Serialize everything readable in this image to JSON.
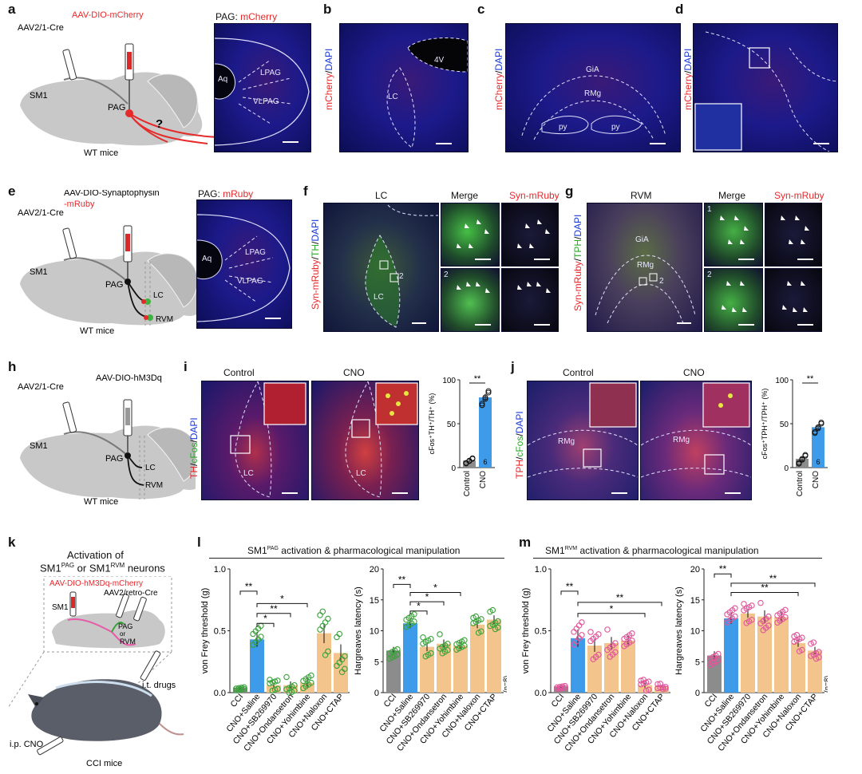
{
  "panels": {
    "a": {
      "letter": "a",
      "virus": "AAV-DIO-mCherry",
      "cre": "AAV2/1-Cre",
      "sm1": "SM1",
      "pag": "PAG",
      "question": "?",
      "mice": "WT mice",
      "img_title_prefix": "PAG: ",
      "img_title_marker": "mCherry",
      "aq": "Aq",
      "lpag": "LPAG",
      "vlpag": "VLPAG"
    },
    "b": {
      "letter": "b",
      "vlabel_red": "mCherry",
      "vlabel_sep": "/",
      "vlabel_blue": "DAPI",
      "v4": "4V",
      "lc": "LC"
    },
    "c": {
      "letter": "c",
      "vlabel_red": "mCherry",
      "vlabel_sep": "/",
      "vlabel_blue": "DAPI",
      "gia": "GiA",
      "rmg": "RMg",
      "py1": "py",
      "py2": "py"
    },
    "d": {
      "letter": "d",
      "vlabel_red": "mCherry",
      "vlabel_sep": "/",
      "vlabel_blue": "DAPI"
    },
    "e": {
      "letter": "e",
      "virus_line1": "AAV-DIO-Synaptophysin",
      "virus_line2": "-mRuby",
      "cre": "AAV2/1-Cre",
      "sm1": "SM1",
      "pag": "PAG",
      "lc": "LC",
      "rvm": "RVM",
      "mice": "WT mice",
      "img_title_prefix": "PAG: ",
      "img_title_marker": "mRuby",
      "aq": "Aq",
      "lpag": "LPAG",
      "vlpag": "VLPAG"
    },
    "f": {
      "letter": "f",
      "title": "LC",
      "merge": "Merge",
      "syn": "Syn-mRuby",
      "vl_red": "Syn-mRuby",
      "vl_green": "TH",
      "vl_blue": "DAPI",
      "lc": "LC",
      "n1": "1",
      "n2": "2",
      "z2": "2"
    },
    "g": {
      "letter": "g",
      "title": "RVM",
      "merge": "Merge",
      "syn": "Syn-mRuby",
      "vl_red": "Syn-mRuby",
      "vl_green": "TPH",
      "vl_blue": "DAPI",
      "gia": "GiA",
      "rmg": "RMg",
      "n1": "1",
      "n2": "2",
      "z2": "2"
    },
    "h": {
      "letter": "h",
      "virus": "AAV-DIO-hM3Dq",
      "cre": "AAV2/1-Cre",
      "sm1": "SM1",
      "pag": "PAG",
      "lc": "LC",
      "rvm": "RVM",
      "mice": "WT mice"
    },
    "i": {
      "letter": "i",
      "control": "Control",
      "cno": "CNO",
      "vl_red": "TH",
      "vl_green": "cFos",
      "vl_blue": "DAPI",
      "lc1": "LC",
      "lc2": "LC"
    },
    "j": {
      "letter": "j",
      "control": "Control",
      "cno": "CNO",
      "vl_red": "TPH",
      "vl_green": "cFos",
      "vl_blue": "DAPI",
      "rmg1": "RMg",
      "rmg2": "RMg"
    },
    "k": {
      "letter": "k",
      "title1": "Activation of",
      "title2_pre": "SM1",
      "title2_sup1": "PAG",
      "title2_mid": " or SM1",
      "title2_sup2": "RVM",
      "title2_post": " neurons",
      "virus": "AAV-DIO-hM3Dq-mCherry",
      "retro": "AAV2/retro-Cre",
      "sm1": "SM1",
      "pag": "PAG",
      "or": "or",
      "rvm": "RVM",
      "it": "i.t. drugs",
      "ip": "i.p. CNO",
      "mice": "CCI mice"
    },
    "l": {
      "letter": "l",
      "title_pre": "SM1",
      "title_sup": "PAG",
      "title_post": " activation & pharmacological manipulation"
    },
    "m": {
      "letter": "m",
      "title_pre": "SM1",
      "title_sup": "RVM",
      "title_post": " activation & pharmacological manipulation"
    }
  },
  "colors": {
    "cci": "#8c8c8c",
    "saline": "#3d9be9",
    "drug": "#f3c48b",
    "green_pt": "#3aa23a",
    "pink_pt": "#e0559a",
    "red": "#e8282b",
    "blue_txt": "#1a3ad8",
    "green_txt": "#2aa82a"
  },
  "chart_data": [
    {
      "id": "i",
      "type": "bar",
      "categories": [
        "Control",
        "CNO"
      ],
      "values": [
        8,
        80
      ],
      "errors": [
        1.5,
        4
      ],
      "ylabel": "cFos⁺TH⁺/TH⁺ (%)",
      "ylim": [
        0,
        100
      ],
      "yticks": [
        "0",
        "50",
        "100"
      ],
      "sig": "**",
      "n": "6"
    },
    {
      "id": "j",
      "type": "bar",
      "categories": [
        "Control",
        "CNO"
      ],
      "values": [
        10,
        46
      ],
      "errors": [
        2.5,
        3
      ],
      "ylabel": "cFos⁺TPH⁺/TPH⁺ (%)",
      "ylim": [
        0,
        100
      ],
      "yticks": [
        "0",
        "50",
        "100"
      ],
      "sig": "**",
      "n": "6"
    },
    {
      "id": "l1",
      "type": "bar",
      "categories": [
        "CCI",
        "CNO+Saline",
        "CNO+SB269970",
        "CNO+Ondansetron",
        "CNO+Yohimbine",
        "CNO+Naloxon",
        "CNO+CTAP"
      ],
      "values": [
        0.04,
        0.43,
        0.06,
        0.06,
        0.08,
        0.48,
        0.32
      ],
      "errors": [
        0.01,
        0.06,
        0.02,
        0.03,
        0.04,
        0.08,
        0.07
      ],
      "ylabel": "von Frey threshold (g)",
      "ylim": [
        0,
        1.0
      ],
      "yticks": [
        "0.0",
        "0.5",
        "1.0"
      ],
      "n": "(n=8)",
      "sig": [
        {
          "a": 0,
          "b": 1,
          "label": "**",
          "level": 0.82
        },
        {
          "a": 1,
          "b": 4,
          "label": "*",
          "level": 0.72
        },
        {
          "a": 1,
          "b": 3,
          "label": "**",
          "level": 0.64
        },
        {
          "a": 1,
          "b": 2,
          "label": "*",
          "level": 0.56
        }
      ]
    },
    {
      "id": "l2",
      "type": "bar",
      "categories": [
        "CCI",
        "CNO+Saline",
        "CNO+SB269970",
        "CNO+Ondansetron",
        "CNO+Yohimbine",
        "CNO+Naloxon",
        "CNO+CTAP"
      ],
      "values": [
        6.8,
        11.2,
        7.4,
        7.9,
        7.6,
        11.0,
        11.8
      ],
      "errors": [
        0.6,
        0.8,
        0.7,
        0.7,
        0.6,
        0.6,
        0.7
      ],
      "ylabel": "Hargreaves latency (s)",
      "ylim": [
        0,
        20
      ],
      "yticks": [
        "0",
        "5",
        "10",
        "15",
        "20"
      ],
      "n": "(n=8)",
      "sig": [
        {
          "a": 0,
          "b": 1,
          "label": "**",
          "level": 17.5
        },
        {
          "a": 1,
          "b": 4,
          "label": "*",
          "level": 16.2
        },
        {
          "a": 1,
          "b": 3,
          "label": "*",
          "level": 14.7
        },
        {
          "a": 1,
          "b": 2,
          "label": "*",
          "level": 13.2
        }
      ]
    },
    {
      "id": "m1",
      "type": "bar",
      "categories": [
        "CCI",
        "CNO+Saline",
        "CNO+SB269970",
        "CNO+Ondansetron",
        "CNO+Yohimbine",
        "CNO+Naloxon",
        "CNO+CTAP"
      ],
      "values": [
        0.05,
        0.44,
        0.38,
        0.4,
        0.42,
        0.06,
        0.05
      ],
      "errors": [
        0.01,
        0.07,
        0.05,
        0.05,
        0.04,
        0.02,
        0.01
      ],
      "ylabel": "von Frey threshold (g)",
      "ylim": [
        0,
        1.0
      ],
      "yticks": [
        "0.0",
        "0.5",
        "1.0"
      ],
      "n": "(n=8)",
      "sig": [
        {
          "a": 0,
          "b": 1,
          "label": "**",
          "level": 0.82
        },
        {
          "a": 1,
          "b": 6,
          "label": "**",
          "level": 0.73
        },
        {
          "a": 1,
          "b": 5,
          "label": "*",
          "level": 0.64
        }
      ]
    },
    {
      "id": "m2",
      "type": "bar",
      "categories": [
        "CCI",
        "CNO+Saline",
        "CNO+SB269970",
        "CNO+Ondansetron",
        "CNO+Yohimbine",
        "CNO+Naloxon",
        "CNO+CTAP"
      ],
      "values": [
        6.0,
        12.0,
        12.8,
        12.3,
        12.2,
        8.0,
        6.8
      ],
      "errors": [
        0.7,
        0.9,
        0.7,
        1.0,
        0.8,
        0.6,
        0.6
      ],
      "ylabel": "Hargreaves latency (s)",
      "ylim": [
        0,
        20
      ],
      "yticks": [
        "0",
        "5",
        "10",
        "15",
        "20"
      ],
      "n": "(n=8)",
      "sig": [
        {
          "a": 0,
          "b": 1,
          "label": "**",
          "level": 19.2
        },
        {
          "a": 1,
          "b": 6,
          "label": "**",
          "level": 17.7
        },
        {
          "a": 1,
          "b": 5,
          "label": "**",
          "level": 16.2
        }
      ]
    }
  ]
}
